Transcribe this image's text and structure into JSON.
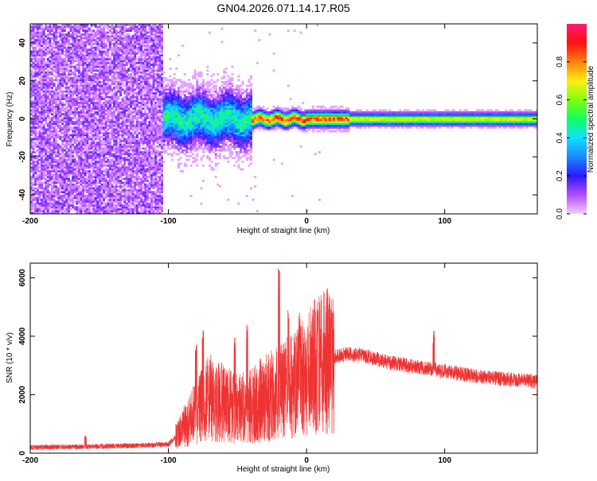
{
  "title": "GN04.2026.071.14.17.R05",
  "chart_data": [
    {
      "type": "heatmap",
      "xlabel": "Height of straight line (km)",
      "ylabel": "Frequency (Hz)",
      "xlim": [
        -200,
        167
      ],
      "ylim": [
        -50,
        50
      ],
      "xticks": [
        -200,
        -100,
        0,
        100
      ],
      "yticks": [
        -40,
        -20,
        0,
        20,
        40
      ],
      "colorbar": {
        "label": "Normalized spectral amplitude",
        "range": [
          0,
          1
        ],
        "ticks": [
          "0.0",
          "0.2",
          "0.4",
          "0.6",
          "0.8"
        ]
      },
      "regions": [
        {
          "x_range": [
            -200,
            -105
          ],
          "description_level": 0.15
        },
        {
          "x_range": [
            -105,
            -40
          ],
          "peak_level": 0.5
        },
        {
          "x_range": [
            -40,
            30
          ],
          "peak_level": 0.95
        },
        {
          "x_range": [
            30,
            167
          ],
          "peak_level": 0.85
        }
      ],
      "grid": false
    },
    {
      "type": "line",
      "xlabel": "Height of straight line (km)",
      "ylabel": "SNR (10 * v/v)",
      "xlim": [
        -200,
        167
      ],
      "ylim": [
        0,
        6500
      ],
      "xticks": [
        -200,
        -100,
        0,
        100
      ],
      "yticks": [
        0,
        2000,
        4000,
        6000
      ],
      "color": "#ee3333",
      "envelope": {
        "x": [
          -200,
          -160,
          -120,
          -100,
          -92,
          -80,
          -70,
          -60,
          -50,
          -40,
          -30,
          -20,
          -10,
          0,
          10,
          20,
          30,
          40,
          60,
          80,
          100,
          120,
          140,
          167
        ],
        "y": [
          200,
          220,
          260,
          300,
          700,
          1400,
          1900,
          1700,
          1500,
          1600,
          1900,
          2100,
          2300,
          2700,
          3100,
          3300,
          3400,
          3350,
          3100,
          2950,
          2800,
          2650,
          2550,
          2450
        ]
      },
      "spikes": [
        {
          "x": -160,
          "y": 600
        },
        {
          "x": -80,
          "y": 3800
        },
        {
          "x": -75,
          "y": 4300
        },
        {
          "x": -52,
          "y": 4000
        },
        {
          "x": -43,
          "y": 4500
        },
        {
          "x": -20,
          "y": 6400
        },
        {
          "x": -13,
          "y": 5000
        },
        {
          "x": -5,
          "y": 5000
        },
        {
          "x": 8,
          "y": 4800
        },
        {
          "x": 92,
          "y": 4200
        }
      ],
      "grid": false
    }
  ]
}
